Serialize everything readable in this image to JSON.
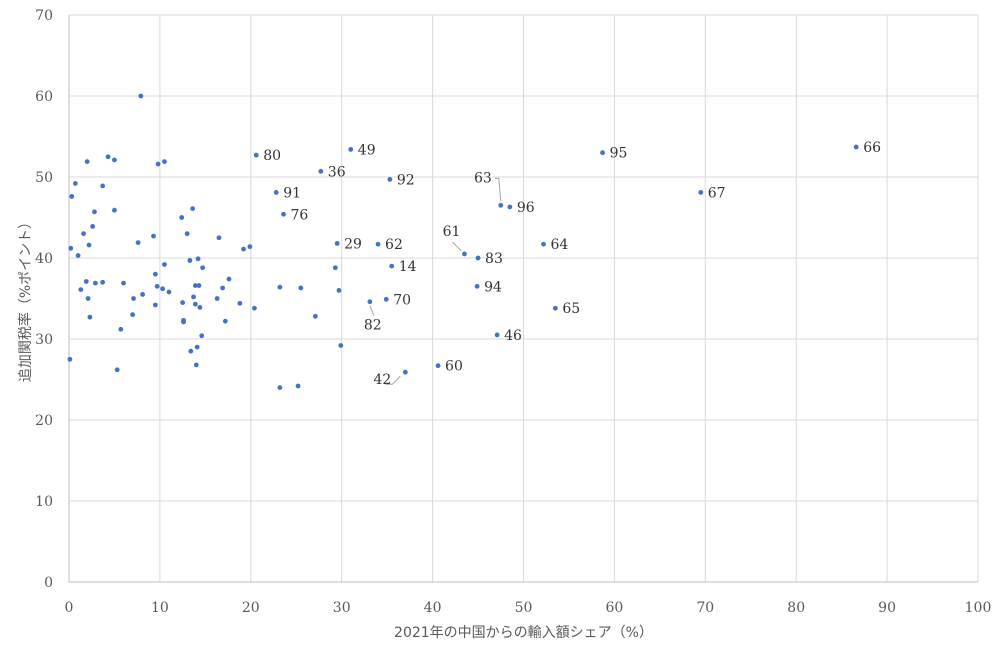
{
  "chart_data": {
    "type": "scatter",
    "title": "",
    "xlabel": "2021年の中国からの輸入額シェア（%）",
    "ylabel": "追加関税率（%ポイント）",
    "xlim": [
      0,
      100
    ],
    "ylim": [
      0,
      70
    ],
    "x_ticks": [
      "0",
      "10",
      "20",
      "30",
      "40",
      "50",
      "60",
      "70",
      "80",
      "90",
      "100"
    ],
    "y_ticks": [
      "0",
      "10",
      "20",
      "30",
      "40",
      "50",
      "60",
      "70"
    ],
    "grid": "vertical-and-horizontal",
    "marker_color": "#4472c4",
    "points": [
      [
        0.1,
        27.5
      ],
      [
        0.2,
        41.2
      ],
      [
        0.3,
        47.6
      ],
      [
        0.7,
        49.2
      ],
      [
        1.0,
        40.3
      ],
      [
        1.3,
        36.1
      ],
      [
        1.6,
        43.0
      ],
      [
        1.9,
        37.1
      ],
      [
        2.0,
        51.9
      ],
      [
        2.1,
        35.0
      ],
      [
        2.2,
        41.6
      ],
      [
        2.3,
        32.7
      ],
      [
        2.6,
        43.9
      ],
      [
        2.8,
        45.7
      ],
      [
        2.9,
        36.9
      ],
      [
        3.7,
        37.0
      ],
      [
        3.7,
        48.9
      ],
      [
        4.3,
        52.5
      ],
      [
        5.0,
        45.9
      ],
      [
        5.0,
        52.1
      ],
      [
        5.3,
        26.2
      ],
      [
        5.7,
        31.2
      ],
      [
        6.0,
        36.9
      ],
      [
        7.0,
        33.0
      ],
      [
        7.1,
        35.0
      ],
      [
        7.6,
        41.9
      ],
      [
        7.9,
        60.0
      ],
      [
        8.1,
        35.5
      ],
      [
        9.3,
        42.7
      ],
      [
        9.5,
        38.0
      ],
      [
        9.5,
        34.2
      ],
      [
        9.7,
        36.5
      ],
      [
        9.8,
        51.6
      ],
      [
        10.3,
        36.2
      ],
      [
        10.5,
        39.2
      ],
      [
        10.5,
        51.9
      ],
      [
        11.0,
        35.8
      ],
      [
        12.4,
        45.0
      ],
      [
        12.5,
        34.5
      ],
      [
        12.6,
        32.3
      ],
      [
        12.6,
        32.1
      ],
      [
        13.0,
        43.0
      ],
      [
        13.3,
        39.7
      ],
      [
        13.4,
        28.5
      ],
      [
        13.6,
        46.1
      ],
      [
        13.7,
        35.2
      ],
      [
        13.9,
        34.3
      ],
      [
        13.9,
        36.6
      ],
      [
        14.0,
        26.8
      ],
      [
        14.1,
        29.0
      ],
      [
        14.2,
        39.9
      ],
      [
        14.3,
        36.6
      ],
      [
        14.4,
        33.9
      ],
      [
        14.6,
        30.4
      ],
      [
        14.7,
        38.8
      ],
      [
        16.3,
        35.0
      ],
      [
        16.5,
        42.5
      ],
      [
        16.9,
        36.3
      ],
      [
        17.2,
        32.2
      ],
      [
        17.6,
        37.4
      ],
      [
        18.8,
        34.4
      ],
      [
        19.2,
        41.1
      ],
      [
        19.9,
        41.4
      ],
      [
        20.4,
        33.8
      ],
      [
        23.2,
        36.4
      ],
      [
        23.2,
        24.0
      ],
      [
        25.2,
        24.2
      ],
      [
        25.5,
        36.3
      ],
      [
        27.1,
        32.8
      ],
      [
        29.3,
        38.8
      ],
      [
        29.7,
        36.0
      ],
      [
        29.9,
        29.2
      ]
    ],
    "labeled_points": [
      {
        "label": "80",
        "x": 20.6,
        "y": 52.7
      },
      {
        "label": "36",
        "x": 27.7,
        "y": 50.7
      },
      {
        "label": "49",
        "x": 31.0,
        "y": 53.4
      },
      {
        "label": "91",
        "x": 22.8,
        "y": 48.1
      },
      {
        "label": "92",
        "x": 35.3,
        "y": 49.7
      },
      {
        "label": "76",
        "x": 23.6,
        "y": 45.4
      },
      {
        "label": "29",
        "x": 29.5,
        "y": 41.8
      },
      {
        "label": "62",
        "x": 34.0,
        "y": 41.7
      },
      {
        "label": "14",
        "x": 35.5,
        "y": 39.0
      },
      {
        "label": "70",
        "x": 34.9,
        "y": 34.9
      },
      {
        "label": "82",
        "x": 33.1,
        "y": 34.6
      },
      {
        "label": "42",
        "x": 37.0,
        "y": 25.9
      },
      {
        "label": "60",
        "x": 40.6,
        "y": 26.7
      },
      {
        "label": "61",
        "x": 43.5,
        "y": 40.5
      },
      {
        "label": "83",
        "x": 45.0,
        "y": 40.0
      },
      {
        "label": "94",
        "x": 44.9,
        "y": 36.5
      },
      {
        "label": "46",
        "x": 47.1,
        "y": 30.5
      },
      {
        "label": "63",
        "x": 47.5,
        "y": 46.5
      },
      {
        "label": "96",
        "x": 48.5,
        "y": 46.3
      },
      {
        "label": "64",
        "x": 52.2,
        "y": 41.7
      },
      {
        "label": "65",
        "x": 53.5,
        "y": 33.8
      },
      {
        "label": "95",
        "x": 58.7,
        "y": 53.0
      },
      {
        "label": "67",
        "x": 69.5,
        "y": 48.1
      },
      {
        "label": "66",
        "x": 86.6,
        "y": 53.7
      }
    ]
  }
}
